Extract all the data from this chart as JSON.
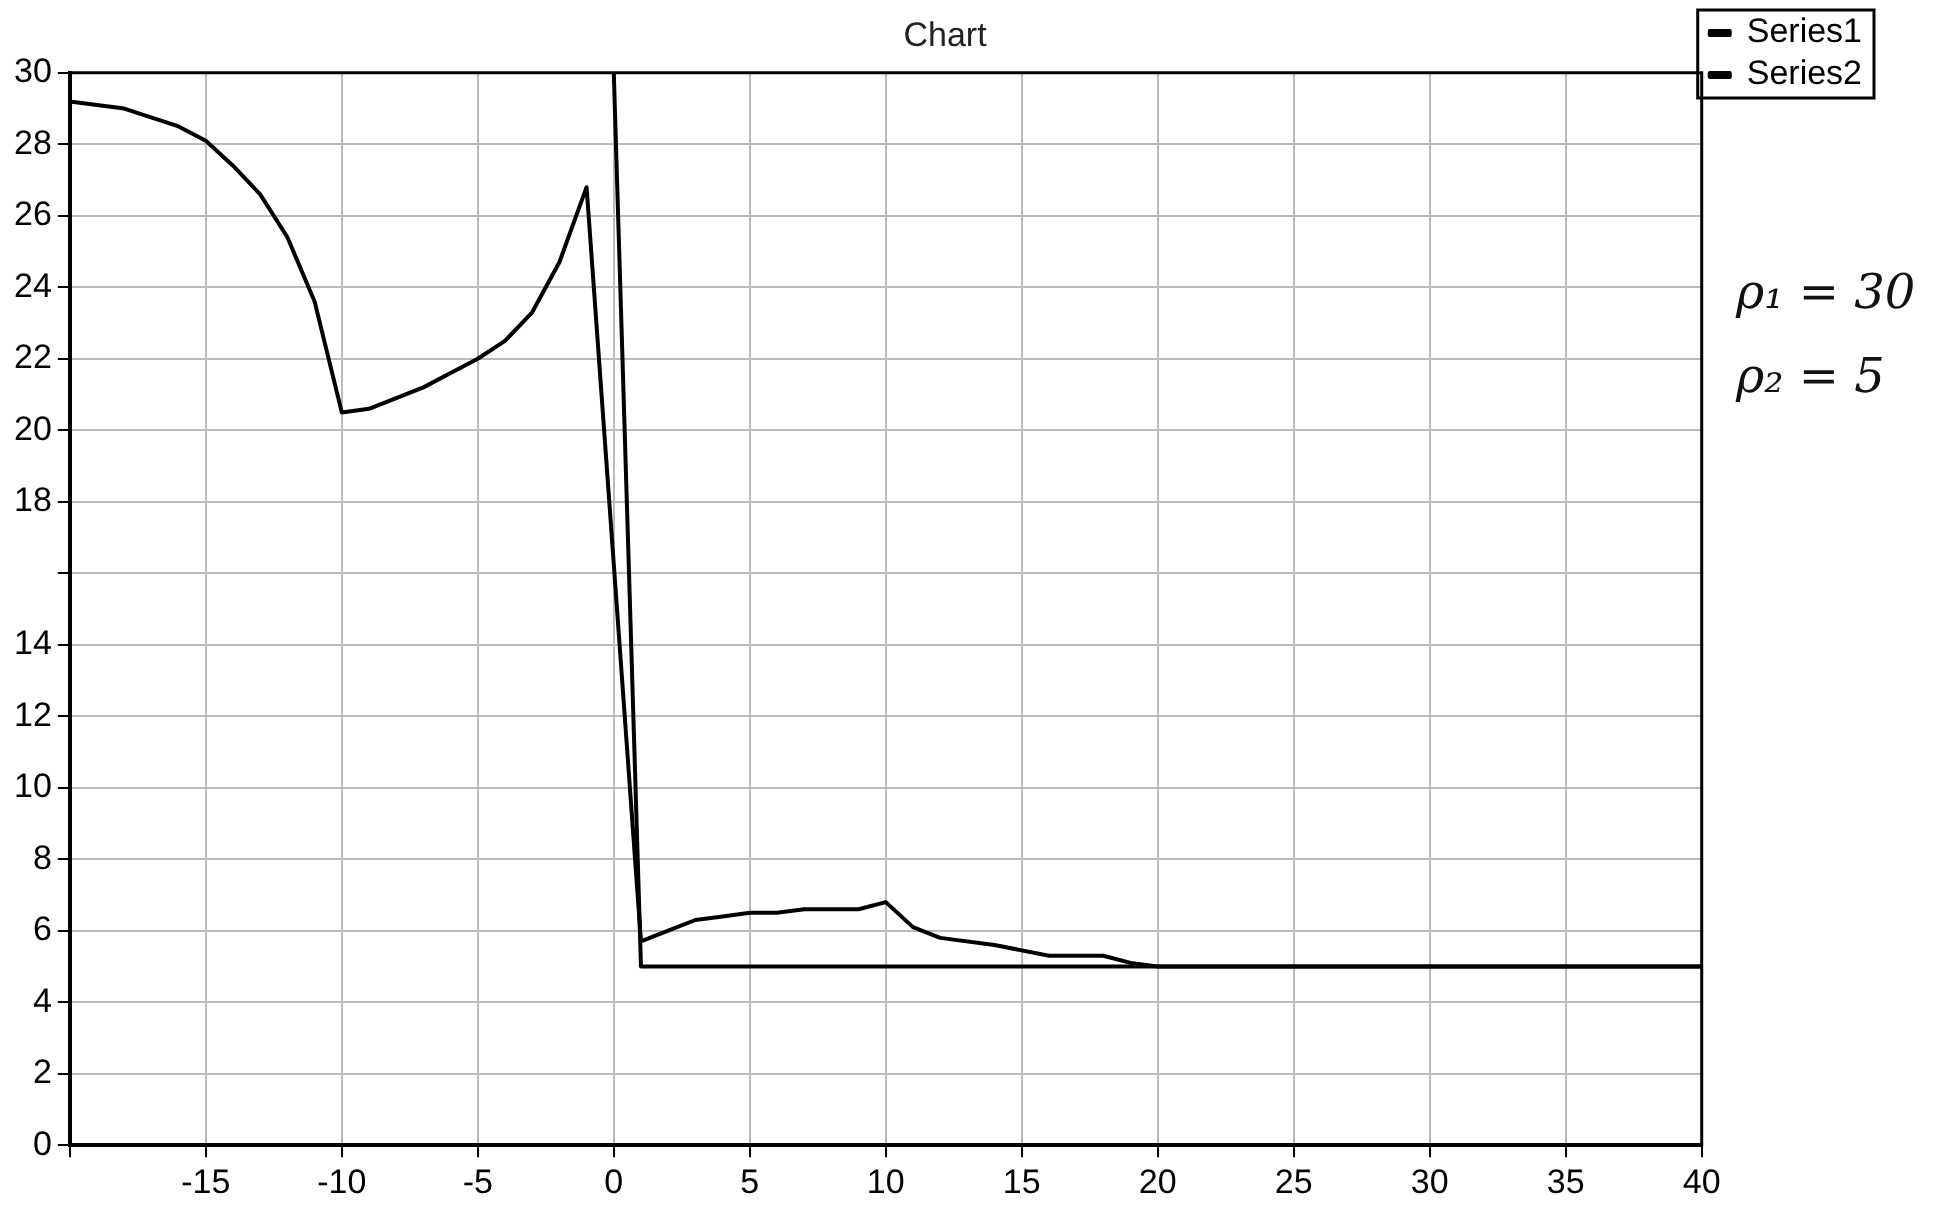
{
  "chart_data": {
    "type": "line",
    "title": "Chart",
    "xlim": [
      -20,
      40
    ],
    "xticks": [
      {
        "value": -20,
        "label": null
      },
      -15,
      -10,
      -5,
      0,
      5,
      10,
      15,
      20,
      25,
      30,
      35,
      40
    ],
    "ylim": [
      0,
      30
    ],
    "yticks": [
      0,
      2,
      4,
      6,
      8,
      10,
      12,
      14,
      {
        "value": 16,
        "label": null
      },
      18,
      20,
      22,
      24,
      26,
      28,
      30
    ],
    "series": [
      {
        "name": "Series1",
        "color": "#000000",
        "x": [
          -20,
          -18,
          -16,
          -15,
          -14,
          -13,
          -12,
          -11,
          -10,
          -9,
          -8,
          -7,
          -6,
          -5,
          -4,
          -3,
          -2,
          -1,
          1,
          2,
          3,
          4,
          5,
          6,
          7,
          8,
          9,
          10,
          11,
          12,
          14,
          16,
          18,
          19,
          20,
          40
        ],
        "values": [
          29.2,
          29.0,
          28.5,
          28.1,
          27.4,
          26.6,
          25.4,
          23.6,
          20.5,
          20.6,
          20.9,
          21.2,
          21.6,
          22.0,
          22.5,
          23.3,
          24.7,
          26.8,
          5.7,
          6.0,
          6.3,
          6.4,
          6.5,
          6.5,
          6.6,
          6.6,
          6.6,
          6.8,
          6.1,
          5.8,
          5.6,
          5.3,
          5.3,
          5.1,
          5.0,
          5.0
        ]
      },
      {
        "name": "Series2",
        "color": "#000000",
        "x": [
          0,
          1,
          40
        ],
        "values": [
          30,
          5,
          5
        ]
      }
    ],
    "grid": true,
    "legend": "top right",
    "marker": "none",
    "line_style": "solid",
    "annotations": [
      "ρ₁ = 30",
      "ρ₂ = 5"
    ]
  }
}
